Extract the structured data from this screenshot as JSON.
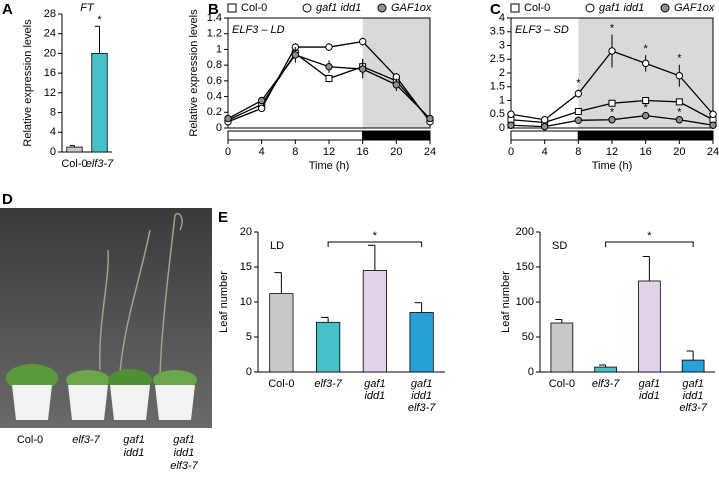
{
  "panel_labels": [
    "A",
    "B",
    "C",
    "D",
    "E"
  ],
  "photo": {
    "labels": [
      [
        "Col-0"
      ],
      [
        "elf3-7"
      ],
      [
        "gaf1",
        "idd1"
      ],
      [
        "gaf1",
        "idd1",
        "elf3-7"
      ]
    ]
  },
  "chart_data": [
    {
      "type": "bar",
      "title": "FT",
      "ylabel": "Relative expression levels",
      "categories": [
        [
          "Col-0"
        ],
        [
          "elf3-7"
        ]
      ],
      "values": [
        1,
        20
      ],
      "errors": [
        0.3,
        5.5
      ],
      "colors": [
        "#c8c8c8",
        "#48c0c8"
      ],
      "ylim": [
        0,
        28
      ],
      "yticks": [
        0,
        4,
        8,
        12,
        16,
        20,
        24,
        28
      ],
      "annotations": [
        {
          "text": "*",
          "bar": 1
        }
      ]
    },
    {
      "type": "line",
      "title": "ELF3 – LD",
      "ylabel": "Relative expression levels",
      "xlabel": "Time (h)",
      "x": [
        0,
        4,
        8,
        12,
        16,
        20,
        24
      ],
      "xlim": [
        0,
        24
      ],
      "xticks": [
        0,
        4,
        8,
        12,
        16,
        20,
        24
      ],
      "ylim": [
        0,
        1.4
      ],
      "yticks": [
        0,
        0.2,
        0.4,
        0.6,
        0.8,
        1,
        1.2,
        1.4
      ],
      "shade": [
        16,
        24
      ],
      "periods": [
        {
          "start": 0,
          "end": 16,
          "color": "#ffffff"
        },
        {
          "start": 16,
          "end": 24,
          "color": "#000000"
        }
      ],
      "series": [
        {
          "name": "Col-0",
          "marker": "square",
          "color": "#ffffff",
          "values": [
            0.1,
            0.3,
            0.95,
            0.63,
            0.78,
            0.6,
            0.1
          ],
          "errors": [
            0.02,
            0.03,
            0.08,
            0.05,
            0.1,
            0.05,
            0.02
          ]
        },
        {
          "name": "gaf1 idd1",
          "marker": "circle",
          "color": "#ffffff",
          "values": [
            0.08,
            0.25,
            1.03,
            1.03,
            1.1,
            0.65,
            0.08
          ],
          "errors": [
            0.02,
            0.03,
            0.05,
            0.05,
            0.05,
            0.05,
            0.02
          ]
        },
        {
          "name": "GAF1ox",
          "marker": "circle",
          "color": "#909090",
          "values": [
            0.12,
            0.35,
            0.93,
            0.78,
            0.75,
            0.55,
            0.12
          ],
          "errors": [
            0.02,
            0.03,
            0.1,
            0.08,
            0.12,
            0.08,
            0.02
          ]
        }
      ],
      "annotations": []
    },
    {
      "type": "line",
      "title": "ELF3 – SD",
      "xlabel": "Time (h)",
      "x": [
        0,
        4,
        8,
        12,
        16,
        20,
        24
      ],
      "xlim": [
        0,
        24
      ],
      "xticks": [
        0,
        4,
        8,
        12,
        16,
        20,
        24
      ],
      "ylim": [
        0,
        4
      ],
      "yticks": [
        0,
        0.5,
        1,
        1.5,
        2,
        2.5,
        3,
        3.5,
        4
      ],
      "shade": [
        8,
        24
      ],
      "periods": [
        {
          "start": 0,
          "end": 8,
          "color": "#ffffff"
        },
        {
          "start": 8,
          "end": 24,
          "color": "#000000"
        }
      ],
      "series": [
        {
          "name": "Col-0",
          "marker": "square",
          "color": "#ffffff",
          "values": [
            0.3,
            0.2,
            0.6,
            0.9,
            1.0,
            0.95,
            0.3
          ],
          "errors": [
            0.03,
            0.03,
            0.05,
            0.08,
            0.1,
            0.08,
            0.03
          ]
        },
        {
          "name": "gaf1 idd1",
          "marker": "circle",
          "color": "#ffffff",
          "values": [
            0.5,
            0.3,
            1.25,
            2.8,
            2.35,
            1.9,
            0.5
          ],
          "errors": [
            0.05,
            0.03,
            0.15,
            0.6,
            0.3,
            0.4,
            0.05
          ]
        },
        {
          "name": "GAF1ox",
          "marker": "circle",
          "color": "#909090",
          "values": [
            0.1,
            0.05,
            0.28,
            0.3,
            0.45,
            0.3,
            0.1
          ],
          "errors": [
            0.02,
            0.02,
            0.04,
            0.04,
            0.05,
            0.04,
            0.02
          ]
        }
      ],
      "annotations": [
        {
          "text": "*",
          "series": 1,
          "point": 2
        },
        {
          "text": "*",
          "series": 1,
          "point": 3
        },
        {
          "text": "*",
          "series": 1,
          "point": 4
        },
        {
          "text": "*",
          "series": 1,
          "point": 5
        },
        {
          "text": "*",
          "series": 2,
          "point": 3
        },
        {
          "text": "*",
          "series": 2,
          "point": 4
        },
        {
          "text": "*",
          "series": 2,
          "point": 5
        }
      ]
    },
    {
      "type": "bar",
      "title": "LD",
      "ylabel": "Leaf number",
      "categories": [
        [
          "Col-0"
        ],
        [
          "elf3-7"
        ],
        [
          "gaf1",
          "idd1"
        ],
        [
          "gaf1",
          "idd1",
          "elf3-7"
        ]
      ],
      "values": [
        11.2,
        7.1,
        14.5,
        8.5
      ],
      "errors": [
        3,
        0.7,
        3.6,
        1.4
      ],
      "colors": [
        "#c8c8c8",
        "#48c0c8",
        "#e2d2ea",
        "#2aa0d8"
      ],
      "ylim": [
        0,
        20
      ],
      "yticks": [
        0,
        5,
        10,
        15,
        20
      ],
      "brackets": [
        {
          "text": "*",
          "from": 1,
          "to": 3
        }
      ]
    },
    {
      "type": "bar",
      "title": "SD",
      "ylabel": "Leaf number",
      "categories": [
        [
          "Col-0"
        ],
        [
          "elf3-7"
        ],
        [
          "gaf1",
          "idd1"
        ],
        [
          "gaf1",
          "idd1",
          "elf3-7"
        ]
      ],
      "values": [
        70,
        7,
        130,
        17
      ],
      "errors": [
        5,
        3,
        35,
        13
      ],
      "colors": [
        "#c8c8c8",
        "#48c0c8",
        "#e2d2ea",
        "#2aa0d8"
      ],
      "ylim": [
        0,
        200
      ],
      "yticks": [
        0,
        50,
        100,
        150,
        200
      ],
      "brackets": [
        {
          "text": "*",
          "from": 1,
          "to": 3
        }
      ]
    }
  ]
}
